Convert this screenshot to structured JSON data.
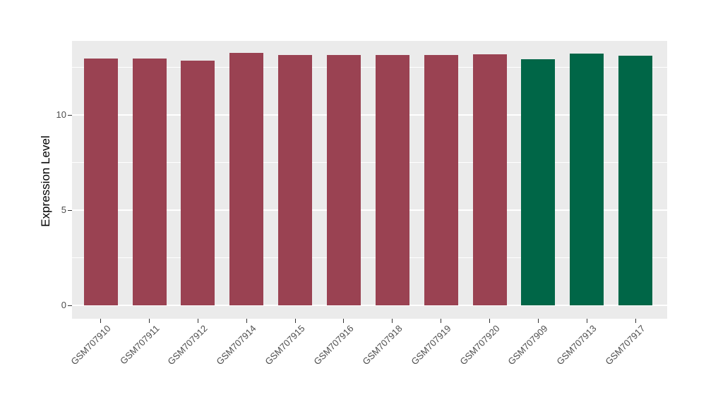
{
  "figure": {
    "background": "#FFFFFF",
    "panel_background": "#EBEBEB",
    "gridline_color": "#FFFFFF",
    "tick_color": "#333333",
    "tick_label_color": "#4D4D4D",
    "bar_color_primary": "#9A4252",
    "bar_color_secondary": "#006647"
  },
  "chart_data": {
    "type": "bar",
    "title": "",
    "xlabel": "",
    "ylabel": "Expression Level",
    "ylim": [
      -0.7,
      13.9
    ],
    "yticks": [
      0,
      5,
      10
    ],
    "ytick_labels": [
      "0",
      "5",
      "10"
    ],
    "minor_gridlines": [
      2.5,
      7.5,
      12.5
    ],
    "grid": true,
    "legend_position": "none",
    "categories": [
      "GSM707910",
      "GSM707911",
      "GSM707912",
      "GSM707914",
      "GSM707915",
      "GSM707916",
      "GSM707918",
      "GSM707919",
      "GSM707920",
      "GSM707909",
      "GSM707913",
      "GSM707917"
    ],
    "values": [
      12.95,
      12.96,
      12.85,
      13.26,
      13.15,
      13.14,
      13.16,
      13.14,
      13.2,
      12.93,
      13.23,
      13.12
    ],
    "colors": [
      "#9A4252",
      "#9A4252",
      "#9A4252",
      "#9A4252",
      "#9A4252",
      "#9A4252",
      "#9A4252",
      "#9A4252",
      "#9A4252",
      "#006647",
      "#006647",
      "#006647"
    ]
  }
}
